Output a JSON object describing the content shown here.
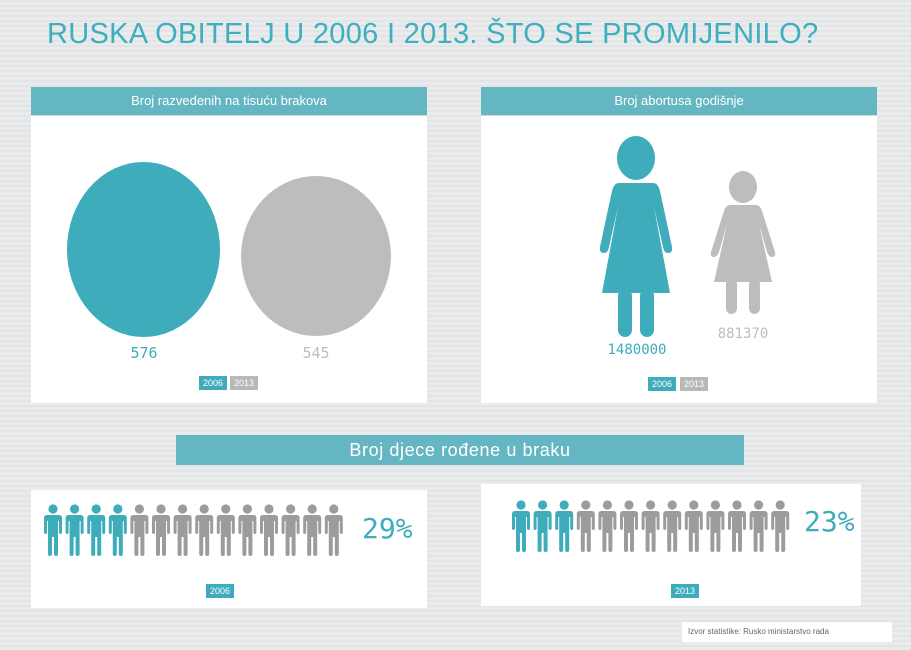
{
  "title": "RUSKA OBITELJ U 2006  I 2013.  ŠTO SE PROMIJENILO?",
  "colors": {
    "teal": "#3eacba",
    "grey": "#bdbdbd",
    "header": "#64b6c3"
  },
  "chart_data": [
    {
      "type": "bubble",
      "title": "Broj razvedenih na tisuću brakova",
      "categories": [
        "2006",
        "2013"
      ],
      "values": [
        576,
        545
      ],
      "labels": [
        "576",
        "545"
      ],
      "legend": [
        "2006",
        "2013"
      ]
    },
    {
      "type": "pictograph",
      "title": "Broj abortusa godišnje",
      "categories": [
        "2006",
        "2013"
      ],
      "values": [
        1480000,
        881370
      ],
      "labels": [
        "1480000",
        "881370"
      ],
      "legend": [
        "2006",
        "2013"
      ]
    },
    {
      "type": "pictograph",
      "title": "Broj djece rođene u braku",
      "panels": [
        {
          "year": "2006",
          "percent": 29,
          "label": "29%",
          "icons_total": 14,
          "icons_highlighted": 4
        },
        {
          "year": "2013",
          "percent": 23,
          "label": "23%",
          "icons_total": 13,
          "icons_highlighted": 3
        }
      ]
    }
  ],
  "footer": {
    "source": "Izvor statistike: Rusko ministarstvo rada"
  }
}
